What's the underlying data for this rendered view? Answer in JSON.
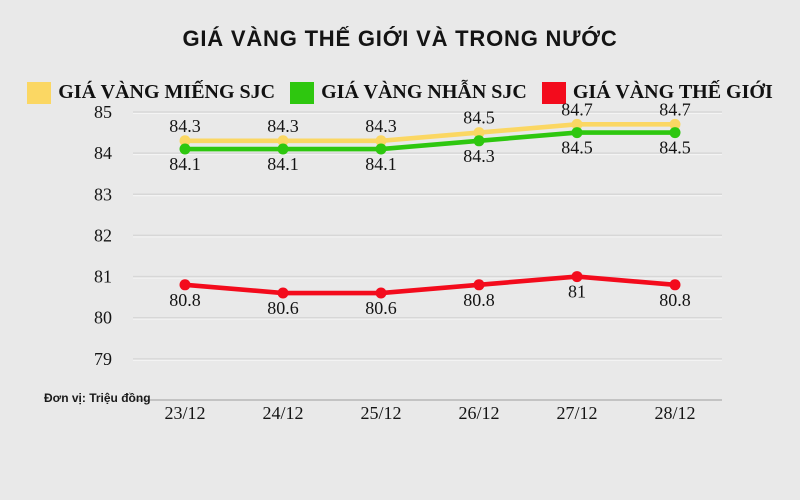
{
  "title": "GIÁ VÀNG THẾ GIỚI VÀ TRONG NƯỚC",
  "unit_label": "Đơn vị: Triệu đồng",
  "colors": {
    "background": "#e9e9e9",
    "gridline": "#d7d7d7",
    "gridline_highlight": "#f4f4f4",
    "axis_line": "#c3c3c3",
    "text": "#141414",
    "yellow": "#fbd763",
    "green": "#2ec70f",
    "red": "#f30b1c"
  },
  "chart_data": {
    "type": "line",
    "title": "GIÁ VÀNG THẾ GIỚI VÀ TRONG NƯỚC",
    "categories": [
      "23/12",
      "24/12",
      "25/12",
      "26/12",
      "27/12",
      "28/12"
    ],
    "series": [
      {
        "name": "GIÁ VÀNG MIẾNG SJC",
        "color": "#fbd763",
        "values": [
          84.3,
          84.3,
          84.3,
          84.5,
          84.7,
          84.7
        ],
        "labels": [
          "84.3",
          "84.3",
          "84.3",
          "84.5",
          "84.7",
          "84.7"
        ],
        "label_position": "above"
      },
      {
        "name": "GIÁ VÀNG NHẪN SJC",
        "color": "#2ec70f",
        "values": [
          84.1,
          84.1,
          84.1,
          84.3,
          84.5,
          84.5
        ],
        "labels": [
          "84.1",
          "84.1",
          "84.1",
          "84.3",
          "84.5",
          "84.5"
        ],
        "label_position": "below"
      },
      {
        "name": "GIÁ VÀNG THẾ GIỚI",
        "color": "#f30b1c",
        "values": [
          80.8,
          80.6,
          80.6,
          80.8,
          81,
          80.8
        ],
        "labels": [
          "80.8",
          "80.6",
          "80.6",
          "80.8",
          "81",
          "80.8"
        ],
        "label_position": "below"
      }
    ],
    "yticks": [
      85,
      84,
      83,
      82,
      81,
      80,
      79
    ],
    "ylim": [
      78,
      85
    ],
    "xlabel": "",
    "ylabel": "Đơn vị: Triệu đồng",
    "grid": true,
    "legend_position": "top"
  }
}
